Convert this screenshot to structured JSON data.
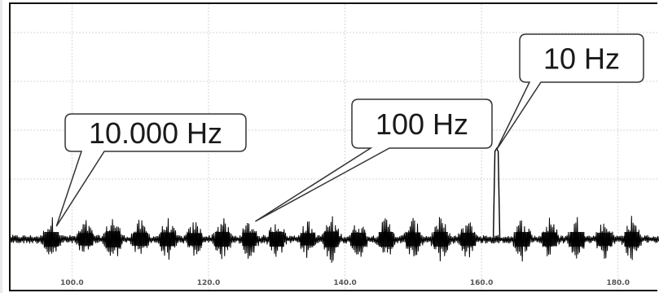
{
  "chart_data": {
    "type": "line",
    "title": "",
    "xlabel": "",
    "ylabel": "",
    "xlim": [
      91,
      186
    ],
    "x_ticks": [
      "100.0",
      "120.0",
      "140.0",
      "160.0",
      "180.0"
    ],
    "x_tick_values": [
      100,
      120,
      140,
      160,
      180
    ],
    "grid": true,
    "colors": {
      "signal": "#000000",
      "grid": "#d6d6d6",
      "frame": "#111111",
      "callout_fill": "#ffffff",
      "callout_border": "#333333"
    },
    "bursts": [
      {
        "x": 97.0,
        "amplitude": 1.0
      },
      {
        "x": 102.0,
        "amplitude": 0.85
      },
      {
        "x": 106.0,
        "amplitude": 1.1
      },
      {
        "x": 110.0,
        "amplitude": 0.9
      },
      {
        "x": 114.0,
        "amplitude": 0.95
      },
      {
        "x": 118.0,
        "amplitude": 0.85
      },
      {
        "x": 122.0,
        "amplitude": 1.0
      },
      {
        "x": 126.0,
        "amplitude": 0.9
      },
      {
        "x": 130.0,
        "amplitude": 1.0
      },
      {
        "x": 134.5,
        "amplitude": 0.85
      },
      {
        "x": 138.0,
        "amplitude": 1.05
      },
      {
        "x": 142.0,
        "amplitude": 0.9
      },
      {
        "x": 146.0,
        "amplitude": 1.0
      },
      {
        "x": 150.0,
        "amplitude": 0.95
      },
      {
        "x": 154.0,
        "amplitude": 1.0
      },
      {
        "x": 158.0,
        "amplitude": 0.9
      },
      {
        "x": 166.0,
        "amplitude": 1.0
      },
      {
        "x": 170.0,
        "amplitude": 0.95
      },
      {
        "x": 174.0,
        "amplitude": 1.0
      },
      {
        "x": 178.0,
        "amplitude": 0.9
      },
      {
        "x": 182.0,
        "amplitude": 1.0
      }
    ],
    "spike": {
      "x": 162.2,
      "amplitude": 3.6
    },
    "annotations": [
      {
        "text": "10.000 Hz",
        "x": 97.0
      },
      {
        "text": "100 Hz",
        "x": 126.5
      },
      {
        "text": "10 Hz",
        "x": 162.2
      }
    ]
  }
}
